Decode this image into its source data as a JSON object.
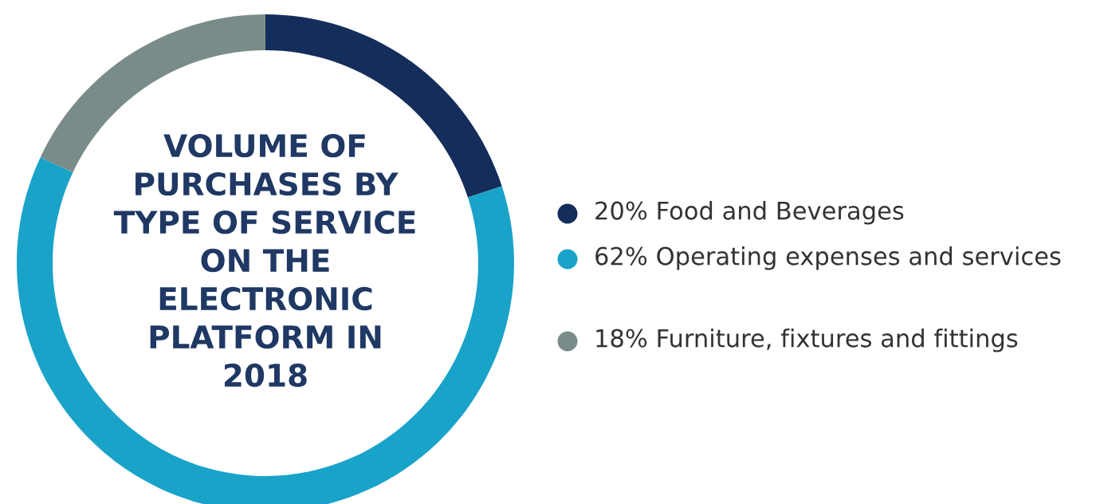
{
  "chart_data": {
    "type": "donut",
    "title": "VOLUME OF PURCHASES BY TYPE OF SERVICE ON THE ELECTRONIC PLATFORM IN 2018",
    "categories": [
      "Food and Beverages",
      "Operating expenses and services",
      "Furniture, fixtures and fittings"
    ],
    "values": [
      20,
      62,
      18
    ],
    "value_labels": [
      "20%",
      "62%",
      "18%"
    ],
    "colors": [
      "#142d5a",
      "#19a3c9",
      "#7a8c8a"
    ],
    "legend": "right"
  }
}
